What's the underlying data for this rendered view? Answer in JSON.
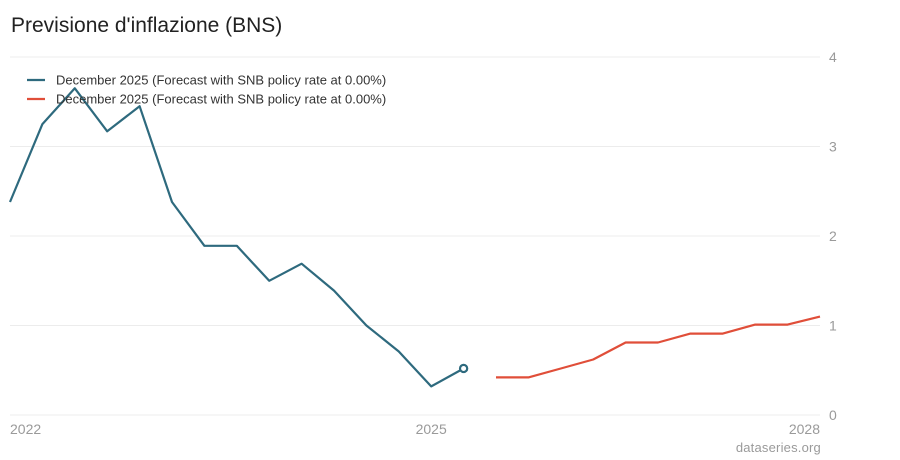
{
  "chart_data": {
    "type": "line",
    "title": "Previsione d'inflazione (BNS)",
    "xlabel": "",
    "ylabel": "",
    "x_ticks": [
      "2022",
      "2025",
      "2028"
    ],
    "y_ticks": [
      "0",
      "1",
      "2",
      "3",
      "4"
    ],
    "ylim": [
      0,
      4
    ],
    "xlim": [
      "2021-Q4",
      "2028-Q1"
    ],
    "grid": true,
    "legend": "top-left",
    "series": [
      {
        "name": "December 2025 (Forecast with SNB policy rate at 0.00%)",
        "color": "#2e6a7e",
        "x": [
          "2021-Q4",
          "2022-Q1",
          "2022-Q2",
          "2022-Q3",
          "2022-Q4",
          "2023-Q1",
          "2023-Q2",
          "2023-Q3",
          "2023-Q4",
          "2024-Q1",
          "2024-Q2",
          "2024-Q3",
          "2024-Q4",
          "2025-Q1",
          "2025-Q2"
        ],
        "values": [
          2.38,
          3.25,
          3.65,
          3.17,
          3.45,
          2.38,
          1.89,
          1.89,
          1.5,
          1.69,
          1.39,
          1.0,
          0.71,
          0.32,
          0.52
        ],
        "last_point_marker": true
      },
      {
        "name": "December 2025 (Forecast with SNB policy rate at 0.00%)",
        "color": "#e04e39",
        "x": [
          "2025-Q3",
          "2025-Q4",
          "2026-Q1",
          "2026-Q2",
          "2026-Q3",
          "2026-Q4",
          "2027-Q1",
          "2027-Q2",
          "2027-Q3",
          "2027-Q4",
          "2028-Q1"
        ],
        "values": [
          0.42,
          0.42,
          0.52,
          0.62,
          0.81,
          0.81,
          0.91,
          0.91,
          1.01,
          1.01,
          1.1
        ]
      }
    ]
  },
  "source": "dataseries.org"
}
